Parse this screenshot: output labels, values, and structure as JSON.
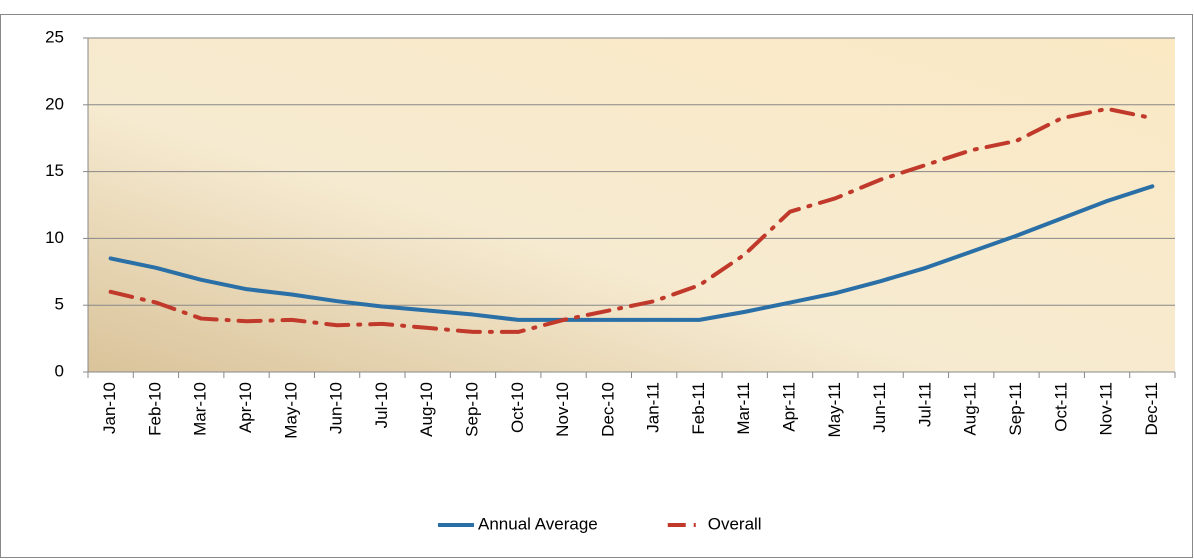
{
  "chart_data": {
    "type": "line",
    "categories": [
      "Jan-10",
      "Feb-10",
      "Mar-10",
      "Apr-10",
      "May-10",
      "Jun-10",
      "Jul-10",
      "Aug-10",
      "Sep-10",
      "Oct-10",
      "Nov-10",
      "Dec-10",
      "Jan-11",
      "Feb-11",
      "Mar-11",
      "Apr-11",
      "May-11",
      "Jun-11",
      "Jul-11",
      "Aug-11",
      "Sep-11",
      "Oct-11",
      "Nov-11",
      "Dec-11"
    ],
    "series": [
      {
        "name": "Annual Average",
        "color": "#2a6fa6",
        "values": [
          8.5,
          7.8,
          6.9,
          6.2,
          5.8,
          5.3,
          4.9,
          4.6,
          4.3,
          3.9,
          3.9,
          3.9,
          3.9,
          3.9,
          4.5,
          5.2,
          5.9,
          6.8,
          7.8,
          9.0,
          10.2,
          11.5,
          12.8,
          13.9
        ]
      },
      {
        "name": "Overall",
        "color": "#c0392b",
        "dashed": true,
        "values": [
          6.0,
          5.2,
          4.0,
          3.8,
          3.9,
          3.5,
          3.6,
          3.3,
          3.0,
          3.0,
          3.9,
          4.6,
          5.3,
          6.5,
          8.8,
          12.0,
          13.0,
          14.4,
          15.5,
          16.6,
          17.3,
          19.0,
          19.7,
          19.0
        ]
      }
    ],
    "ylim": [
      0,
      25
    ],
    "yticks": [
      0,
      5,
      10,
      15,
      20,
      25
    ],
    "grid": true,
    "legend": "bottom"
  }
}
